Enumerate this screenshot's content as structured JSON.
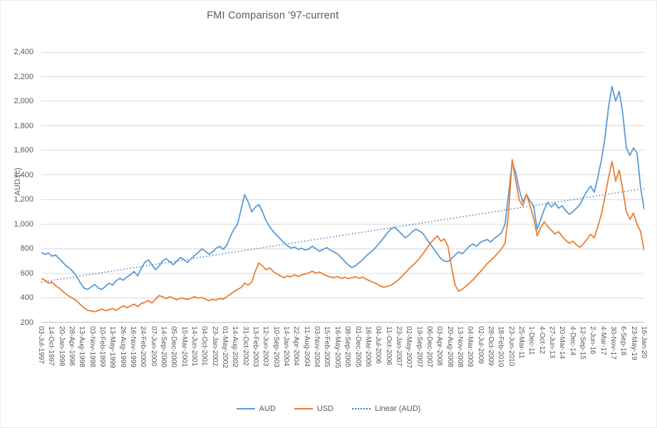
{
  "chart": {
    "title": "FMI Comparison '97-current",
    "y_axis_title": "AUD (c)"
  },
  "legend": {
    "items": [
      {
        "label": "AUD",
        "color": "#5B9BD5",
        "dash": "solid"
      },
      {
        "label": "USD",
        "color": "#ED7D31",
        "dash": "solid"
      },
      {
        "label": "Linear (AUD)",
        "color": "#4472C4",
        "dash": "dotted"
      }
    ]
  },
  "chart_data": {
    "type": "line",
    "title": "FMI Comparison '97-current",
    "xlabel": "",
    "ylabel": "AUD (c)",
    "ylim": [
      200,
      2400
    ],
    "y_tick_step": 200,
    "y_tick_labels": [
      "200",
      "400",
      "600",
      "800",
      "1,000",
      "1,200",
      "1,400",
      "1,600",
      "1,800",
      "2,000",
      "2,200",
      "2,400"
    ],
    "grid": true,
    "legend_position": "bottom",
    "x_tick_labels": [
      "03-Jul-1997",
      "14-Oct-1997",
      "20-Jan-1998",
      "28-Apr-1998",
      "13-Aug-1998",
      "03-Nov-1998",
      "10-Feb-1999",
      "13-May-1999",
      "26-Aug-1999",
      "16-Nov-1999",
      "24-Feb-2000",
      "07-Jun-2000",
      "14-Sep-2000",
      "05-Dec-2000",
      "15-Mar-2001",
      "14-Jun-2001",
      "04-Oct-2001",
      "23-Jan-2002",
      "01-May-2002",
      "14-Aug-2002",
      "31-Oct-2002",
      "13-Feb-2003",
      "12-Jun-2003",
      "10-Sep-2003",
      "14-Jan-2004",
      "22-Apr-2004",
      "11-Aug-2004",
      "03-Nov-2004",
      "15-Feb-2005",
      "16-May-2005",
      "08-Sep-2005",
      "01-Dec-2005",
      "16-Mar-2006",
      "04-Jul-2006",
      "11-Oct-2006",
      "23-Jan-2007",
      "02-May-2007",
      "19-Sep-2007",
      "06-Dec-2007",
      "03-Apr-2008",
      "20-Aug-2008",
      "13-Nov-2008",
      "04-Mar-2009",
      "02-Jul-2009",
      "28-Oct-2009",
      "18-Feb-2010",
      "23-Jun-2010",
      "25-Mar-11",
      "1-Dec-11",
      "4-Oct-12",
      "27-Jun-13",
      "20-Mar-14",
      "4-Dec-14",
      "12-Sep-15",
      "2-Jun-16",
      "4-Mar-17",
      "30-Nov-17",
      "6-Sep-18",
      "23-May-19",
      "16-Jan-20"
    ],
    "series": [
      {
        "name": "AUD",
        "color": "#5B9BD5",
        "values": [
          770,
          755,
          765,
          740,
          750,
          720,
          690,
          660,
          640,
          610,
          570,
          520,
          480,
          470,
          490,
          510,
          480,
          470,
          495,
          520,
          505,
          540,
          560,
          545,
          570,
          590,
          615,
          580,
          640,
          690,
          710,
          670,
          630,
          660,
          700,
          720,
          695,
          670,
          700,
          730,
          710,
          690,
          720,
          745,
          770,
          800,
          780,
          755,
          775,
          805,
          820,
          795,
          830,
          900,
          960,
          1000,
          1120,
          1240,
          1180,
          1100,
          1140,
          1160,
          1100,
          1030,
          980,
          940,
          910,
          880,
          850,
          825,
          805,
          815,
          795,
          805,
          790,
          800,
          820,
          800,
          780,
          795,
          810,
          790,
          775,
          760,
          730,
          700,
          670,
          648,
          660,
          685,
          710,
          740,
          765,
          790,
          820,
          855,
          890,
          930,
          960,
          975,
          950,
          920,
          890,
          910,
          940,
          960,
          945,
          925,
          880,
          840,
          800,
          760,
          720,
          700,
          695,
          720,
          750,
          775,
          760,
          790,
          820,
          840,
          820,
          850,
          865,
          875,
          855,
          885,
          905,
          930,
          1000,
          1250,
          1505,
          1420,
          1280,
          1180,
          1240,
          1190,
          1150,
          960,
          1040,
          1120,
          1180,
          1140,
          1170,
          1130,
          1150,
          1110,
          1080,
          1100,
          1130,
          1160,
          1220,
          1270,
          1310,
          1260,
          1380,
          1520,
          1700,
          1950,
          2120,
          2000,
          2080,
          1900,
          1620,
          1560,
          1620,
          1580,
          1300,
          1120
        ]
      },
      {
        "name": "USD",
        "color": "#ED7D31",
        "values": [
          560,
          545,
          520,
          530,
          500,
          480,
          455,
          430,
          410,
          395,
          375,
          345,
          320,
          300,
          295,
          288,
          300,
          310,
          298,
          305,
          315,
          300,
          320,
          335,
          322,
          335,
          350,
          330,
          355,
          365,
          380,
          360,
          390,
          420,
          410,
          395,
          410,
          400,
          385,
          400,
          395,
          388,
          400,
          410,
          398,
          405,
          390,
          378,
          390,
          382,
          398,
          390,
          412,
          430,
          452,
          470,
          485,
          520,
          505,
          530,
          620,
          685,
          660,
          630,
          645,
          615,
          598,
          580,
          565,
          580,
          572,
          590,
          575,
          588,
          595,
          605,
          618,
          600,
          612,
          595,
          580,
          572,
          565,
          575,
          560,
          568,
          558,
          565,
          572,
          560,
          570,
          555,
          540,
          528,
          515,
          498,
          488,
          495,
          505,
          522,
          545,
          572,
          605,
          635,
          662,
          690,
          722,
          760,
          800,
          845,
          875,
          905,
          862,
          880,
          820,
          650,
          505,
          455,
          470,
          495,
          520,
          548,
          580,
          612,
          645,
          680,
          705,
          735,
          765,
          800,
          845,
          1100,
          1525,
          1350,
          1195,
          1150,
          1245,
          1150,
          1050,
          905,
          975,
          1020,
          980,
          950,
          920,
          940,
          900,
          870,
          845,
          862,
          832,
          812,
          842,
          878,
          918,
          888,
          980,
          1080,
          1220,
          1380,
          1510,
          1350,
          1440,
          1280,
          1100,
          1040,
          1090,
          1000,
          940,
          785
        ]
      }
    ],
    "trendline": {
      "name": "Linear (AUD)",
      "color": "#4472C4",
      "style": "dotted",
      "start_value": 530,
      "end_value": 1290
    }
  }
}
